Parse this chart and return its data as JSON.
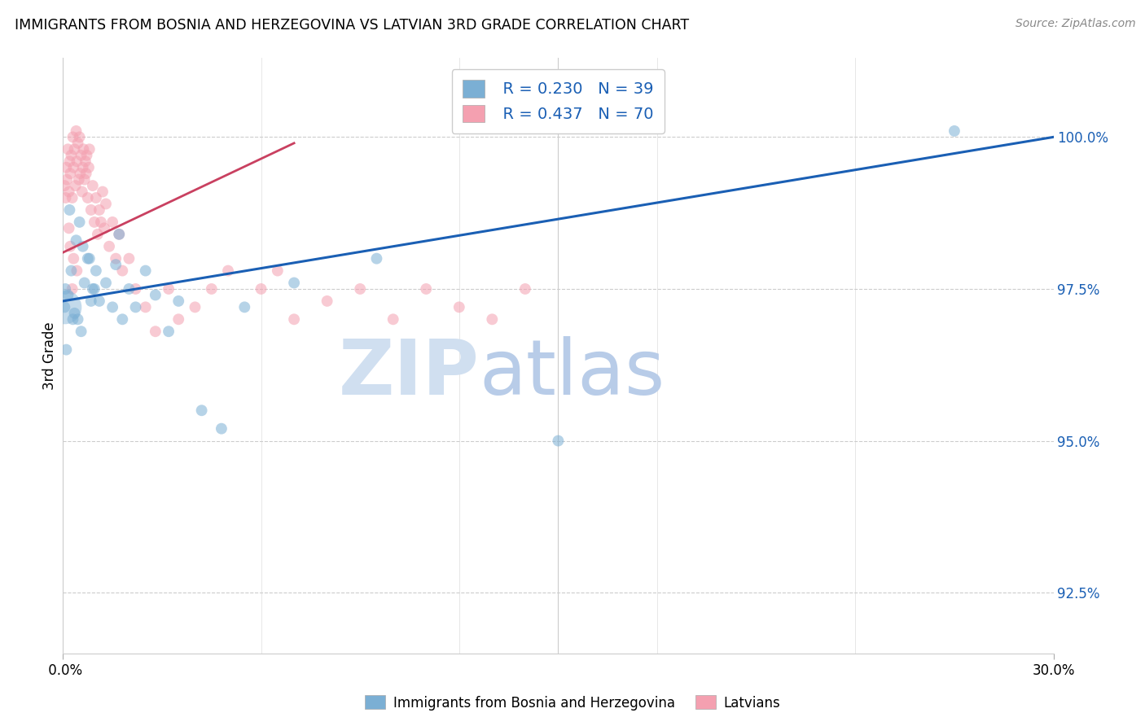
{
  "title": "IMMIGRANTS FROM BOSNIA AND HERZEGOVINA VS LATVIAN 3RD GRADE CORRELATION CHART",
  "source": "Source: ZipAtlas.com",
  "ylabel": "3rd Grade",
  "ytick_values": [
    92.5,
    95.0,
    97.5,
    100.0
  ],
  "xmin": 0.0,
  "xmax": 30.0,
  "ymin": 91.5,
  "ymax": 101.3,
  "legend_blue_r": "R = 0.230",
  "legend_blue_n": "N = 39",
  "legend_pink_r": "R = 0.437",
  "legend_pink_n": "N = 70",
  "legend_blue_label": "Immigrants from Bosnia and Herzegovina",
  "legend_pink_label": "Latvians",
  "blue_color": "#7bafd4",
  "pink_color": "#f4a0b0",
  "blue_line_color": "#1a5fb4",
  "pink_line_color": "#c94060",
  "watermark_zip_color": "#d0dff0",
  "watermark_atlas_color": "#b8cce8",
  "blue_trend_x": [
    0,
    30
  ],
  "blue_trend_y": [
    97.3,
    100.0
  ],
  "pink_trend_x": [
    0,
    6
  ],
  "pink_trend_y": [
    98.1,
    99.8
  ],
  "blue_x": [
    0.15,
    0.2,
    0.3,
    0.4,
    0.5,
    0.6,
    0.8,
    0.9,
    1.0,
    1.1,
    1.3,
    1.5,
    1.6,
    1.7,
    1.8,
    2.0,
    2.2,
    2.5,
    2.8,
    3.2,
    3.5,
    4.2,
    4.8,
    5.5,
    7.0,
    9.5,
    15.0,
    27.0,
    0.05,
    0.07,
    0.1,
    0.25,
    0.35,
    0.45,
    0.55,
    0.65,
    0.75,
    0.85,
    0.95
  ],
  "blue_y": [
    97.4,
    98.8,
    97.0,
    98.3,
    98.6,
    98.2,
    98.0,
    97.5,
    97.8,
    97.3,
    97.6,
    97.2,
    97.9,
    98.4,
    97.0,
    97.5,
    97.2,
    97.8,
    97.4,
    96.8,
    97.3,
    95.5,
    95.2,
    97.2,
    97.6,
    98.0,
    95.0,
    100.1,
    97.2,
    97.5,
    96.5,
    97.8,
    97.1,
    97.0,
    96.8,
    97.6,
    98.0,
    97.3,
    97.5
  ],
  "blue_sizes": [
    100,
    100,
    100,
    100,
    100,
    100,
    100,
    100,
    100,
    100,
    100,
    100,
    100,
    100,
    100,
    100,
    100,
    100,
    100,
    100,
    100,
    100,
    100,
    100,
    100,
    100,
    100,
    100,
    100,
    100,
    100,
    100,
    100,
    100,
    100,
    100,
    100,
    100,
    100
  ],
  "blue_large_x": [
    0.05
  ],
  "blue_large_y": [
    97.2
  ],
  "blue_large_size": [
    900
  ],
  "pink_x": [
    0.05,
    0.08,
    0.1,
    0.12,
    0.15,
    0.18,
    0.2,
    0.22,
    0.25,
    0.28,
    0.3,
    0.32,
    0.35,
    0.38,
    0.4,
    0.42,
    0.45,
    0.48,
    0.5,
    0.52,
    0.55,
    0.58,
    0.6,
    0.62,
    0.65,
    0.68,
    0.7,
    0.72,
    0.75,
    0.78,
    0.8,
    0.85,
    0.9,
    0.95,
    1.0,
    1.05,
    1.1,
    1.15,
    1.2,
    1.25,
    1.3,
    1.4,
    1.5,
    1.6,
    1.7,
    1.8,
    2.0,
    2.2,
    2.5,
    2.8,
    3.2,
    3.5,
    4.0,
    4.5,
    5.0,
    6.0,
    6.5,
    7.0,
    8.0,
    9.0,
    10.0,
    11.0,
    12.0,
    13.0,
    14.0,
    0.32,
    0.18,
    0.42,
    0.28,
    0.22
  ],
  "pink_y": [
    99.2,
    99.0,
    99.5,
    99.3,
    99.8,
    99.1,
    99.6,
    99.4,
    99.7,
    99.0,
    100.0,
    99.5,
    99.8,
    99.2,
    100.1,
    99.6,
    99.9,
    99.3,
    100.0,
    99.4,
    99.7,
    99.1,
    99.5,
    99.8,
    99.3,
    99.6,
    99.4,
    99.7,
    99.0,
    99.5,
    99.8,
    98.8,
    99.2,
    98.6,
    99.0,
    98.4,
    98.8,
    98.6,
    99.1,
    98.5,
    98.9,
    98.2,
    98.6,
    98.0,
    98.4,
    97.8,
    98.0,
    97.5,
    97.2,
    96.8,
    97.5,
    97.0,
    97.2,
    97.5,
    97.8,
    97.5,
    97.8,
    97.0,
    97.3,
    97.5,
    97.0,
    97.5,
    97.2,
    97.0,
    97.5,
    98.0,
    98.5,
    97.8,
    97.5,
    98.2
  ],
  "pink_sizes": [
    100,
    100,
    100,
    100,
    100,
    100,
    100,
    100,
    100,
    100,
    100,
    100,
    100,
    100,
    100,
    100,
    100,
    100,
    100,
    100,
    100,
    100,
    100,
    100,
    100,
    100,
    100,
    100,
    100,
    100,
    100,
    100,
    100,
    100,
    100,
    100,
    100,
    100,
    100,
    100,
    100,
    100,
    100,
    100,
    100,
    100,
    100,
    100,
    100,
    100,
    100,
    100,
    100,
    100,
    100,
    100,
    100,
    100,
    100,
    100,
    100,
    100,
    100,
    100,
    100,
    100,
    100,
    100,
    100,
    100
  ]
}
